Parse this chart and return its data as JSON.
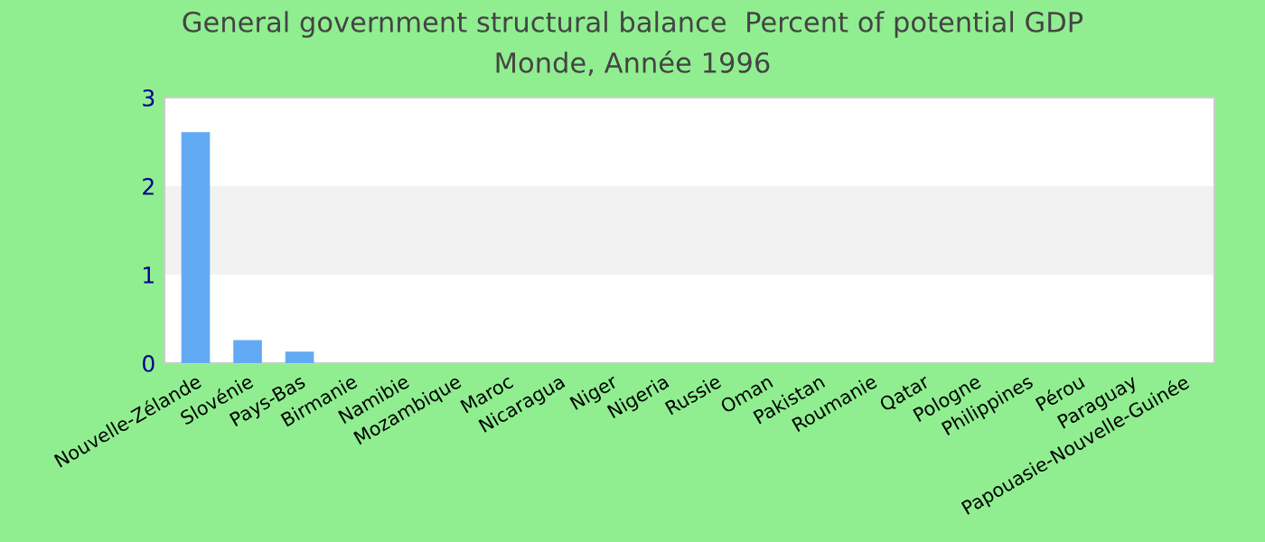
{
  "chart_data": {
    "type": "bar",
    "title": "General government structural balance  Percent of potential GDP",
    "subtitle": "Monde, Année 1996",
    "categories": [
      "Nouvelle-Zélande",
      "Slovénie",
      "Pays-Bas",
      "Birmanie",
      "Namibie",
      "Mozambique",
      "Maroc",
      "Nicaragua",
      "Niger",
      "Nigeria",
      "Russie",
      "Oman",
      "Pakistan",
      "Roumanie",
      "Qatar",
      "Pologne",
      "Philippines",
      "Pérou",
      "Paraguay",
      "Papouasie-Nouvelle-Guinée"
    ],
    "values": [
      2.61,
      0.26,
      0.13,
      null,
      null,
      null,
      null,
      null,
      null,
      null,
      null,
      null,
      null,
      null,
      null,
      null,
      null,
      null,
      null,
      null
    ],
    "color": "#63aaf5",
    "ylim": [
      0,
      3
    ],
    "yticks": [
      0,
      1,
      2,
      3
    ],
    "bands": [
      {
        "axis": "y",
        "from": 1,
        "to": 2,
        "color": "#f2f2f2"
      }
    ]
  }
}
